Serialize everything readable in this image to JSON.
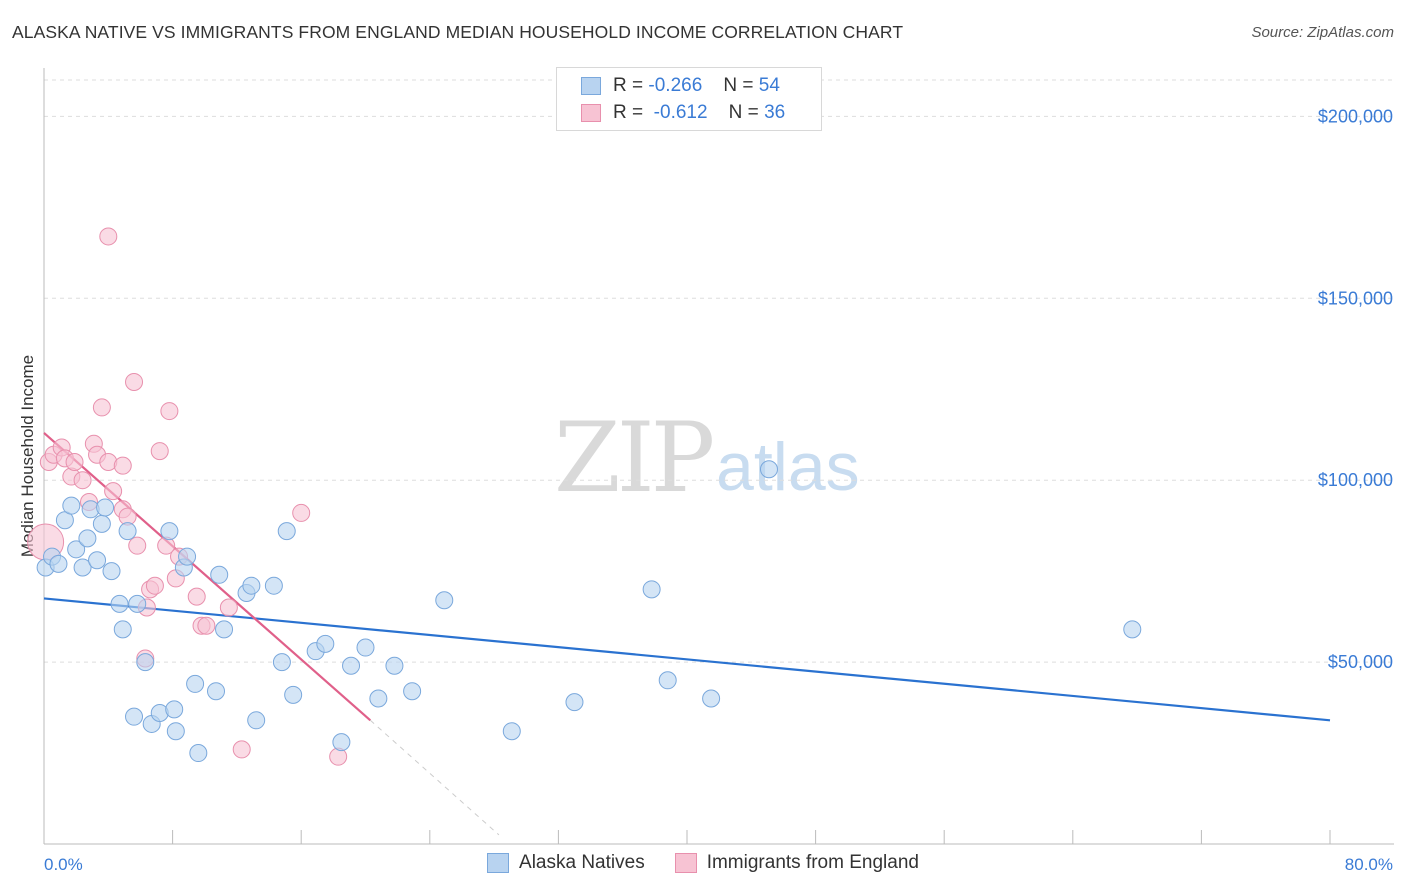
{
  "title": "ALASKA NATIVE VS IMMIGRANTS FROM ENGLAND MEDIAN HOUSEHOLD INCOME CORRELATION CHART",
  "source": "Source: ZipAtlas.com",
  "watermark": {
    "zip": "ZIP",
    "atlas": "atlas"
  },
  "legend": {
    "rows": [
      {
        "r_label": "R =",
        "r_value": "-0.266",
        "n_label": "N =",
        "n_value": "54"
      },
      {
        "r_label": "R =",
        "r_value": "-0.612",
        "n_label": "N =",
        "n_value": "36"
      }
    ]
  },
  "bottom_legend": {
    "series1": "Alaska Natives",
    "series2": "Immigrants from England"
  },
  "colors": {
    "blue_fill": "#b8d3f0",
    "blue_stroke": "#7aa8dc",
    "blue_line": "#2a72d0",
    "pink_fill": "#f7c3d3",
    "pink_stroke": "#e890ad",
    "pink_line": "#e0608a",
    "tick": "#3a7bd5",
    "grid": "#dddddd"
  },
  "chart_data": {
    "type": "scatter",
    "title": "ALASKA NATIVE VS IMMIGRANTS FROM ENGLAND MEDIAN HOUSEHOLD INCOME CORRELATION CHART",
    "xlabel": "",
    "ylabel": "Median Household Income",
    "xlim": [
      0,
      80
    ],
    "ylim": [
      0,
      210000
    ],
    "x_tick_labels": [
      "0.0%",
      "80.0%"
    ],
    "y_ticks": [
      50000,
      100000,
      150000,
      200000
    ],
    "y_tick_labels": [
      "$50,000",
      "$100,000",
      "$150,000",
      "$200,000"
    ],
    "grid": true,
    "series": [
      {
        "name": "Alaska Natives",
        "points": [
          [
            0.1,
            76000
          ],
          [
            0.5,
            79000
          ],
          [
            0.9,
            77000
          ],
          [
            1.3,
            89000
          ],
          [
            1.7,
            93000
          ],
          [
            2.0,
            81000
          ],
          [
            2.4,
            76000
          ],
          [
            2.7,
            84000
          ],
          [
            2.9,
            92000
          ],
          [
            3.3,
            78000
          ],
          [
            3.6,
            88000
          ],
          [
            3.8,
            92500
          ],
          [
            4.2,
            75000
          ],
          [
            4.7,
            66000
          ],
          [
            4.9,
            59000
          ],
          [
            5.2,
            86000
          ],
          [
            5.6,
            35000
          ],
          [
            5.8,
            66000
          ],
          [
            6.3,
            50000
          ],
          [
            6.7,
            33000
          ],
          [
            7.2,
            36000
          ],
          [
            7.8,
            86000
          ],
          [
            8.1,
            37000
          ],
          [
            8.2,
            31000
          ],
          [
            8.7,
            76000
          ],
          [
            8.9,
            79000
          ],
          [
            9.4,
            44000
          ],
          [
            9.6,
            25000
          ],
          [
            10.7,
            42000
          ],
          [
            10.9,
            74000
          ],
          [
            11.2,
            59000
          ],
          [
            12.6,
            69000
          ],
          [
            12.9,
            71000
          ],
          [
            13.2,
            34000
          ],
          [
            14.3,
            71000
          ],
          [
            14.8,
            50000
          ],
          [
            15.1,
            86000
          ],
          [
            15.5,
            41000
          ],
          [
            16.9,
            53000
          ],
          [
            17.5,
            55000
          ],
          [
            18.5,
            28000
          ],
          [
            19.1,
            49000
          ],
          [
            20.0,
            54000
          ],
          [
            20.8,
            40000
          ],
          [
            21.8,
            49000
          ],
          [
            22.9,
            42000
          ],
          [
            24.9,
            67000
          ],
          [
            29.1,
            31000
          ],
          [
            33.0,
            39000
          ],
          [
            37.8,
            70000
          ],
          [
            38.8,
            45000
          ],
          [
            41.5,
            40000
          ],
          [
            45.1,
            103000
          ],
          [
            67.7,
            59000
          ]
        ]
      },
      {
        "name": "Immigrants from England",
        "points": [
          [
            0.1,
            83000
          ],
          [
            0.3,
            105000
          ],
          [
            0.6,
            107000
          ],
          [
            1.1,
            109000
          ],
          [
            1.3,
            106000
          ],
          [
            1.7,
            101000
          ],
          [
            1.9,
            105000
          ],
          [
            2.4,
            100000
          ],
          [
            2.8,
            94000
          ],
          [
            3.1,
            110000
          ],
          [
            3.3,
            107000
          ],
          [
            3.6,
            120000
          ],
          [
            4.0,
            105000
          ],
          [
            4.3,
            97000
          ],
          [
            4.9,
            104000
          ],
          [
            4.9,
            92000
          ],
          [
            5.2,
            90000
          ],
          [
            5.6,
            127000
          ],
          [
            5.8,
            82000
          ],
          [
            6.3,
            51000
          ],
          [
            6.4,
            65000
          ],
          [
            6.6,
            70000
          ],
          [
            6.9,
            71000
          ],
          [
            7.2,
            108000
          ],
          [
            7.6,
            82000
          ],
          [
            7.8,
            119000
          ],
          [
            8.2,
            73000
          ],
          [
            8.4,
            79000
          ],
          [
            9.5,
            68000
          ],
          [
            9.8,
            60000
          ],
          [
            10.1,
            60000
          ],
          [
            11.5,
            65000
          ],
          [
            12.3,
            26000
          ],
          [
            16.0,
            91000
          ],
          [
            18.3,
            24000
          ],
          [
            4.0,
            167000
          ]
        ]
      }
    ],
    "trend_lines": [
      {
        "series": "Alaska Natives",
        "x": [
          0,
          80
        ],
        "y": [
          67500,
          34000
        ]
      },
      {
        "series": "Immigrants from England",
        "x": [
          0,
          20.3
        ],
        "y": [
          113000,
          34000
        ],
        "dashed_extension": {
          "x": [
            20.3,
            28.3
          ],
          "y": [
            34000,
            2500
          ]
        }
      }
    ]
  }
}
